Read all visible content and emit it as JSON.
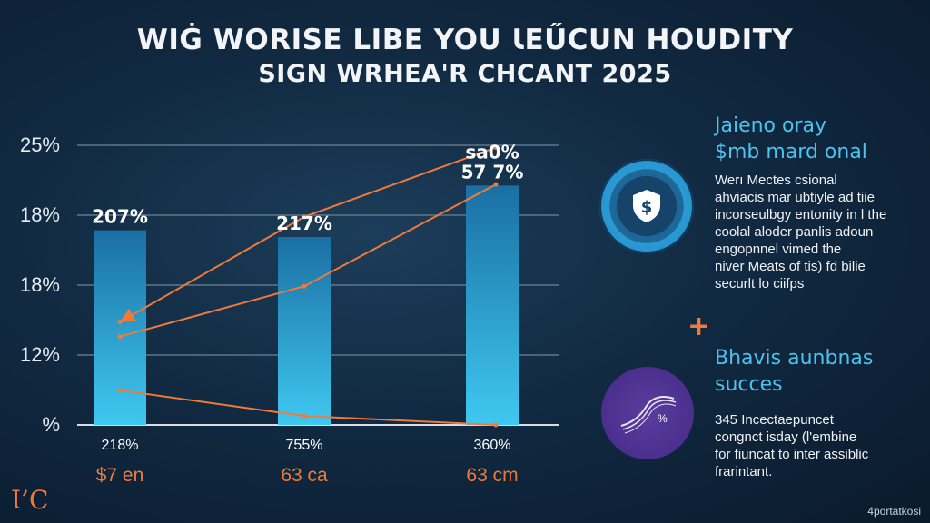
{
  "header": {
    "title_line1": "WIĠ WORISE LIBE YOU ƖEŰCUN HOUDITY",
    "title_line2": "SIGN WRHEA'R CHCANT 2025"
  },
  "chart_data": {
    "type": "bar",
    "categories": [
      "218%",
      "755%",
      "360%"
    ],
    "sub_labels": [
      "$7 en",
      "63 ca",
      "63 cm"
    ],
    "values": [
      17.4,
      16.8,
      21.4
    ],
    "bar_labels": [
      "207%",
      "217%",
      "57 7%"
    ],
    "top_label_extra": "sa0%",
    "y_tick_labels": [
      "%",
      "12%",
      "18%",
      "18%",
      "25%"
    ],
    "ylim": [
      0,
      25
    ],
    "grid": true,
    "lines": [
      {
        "name": "",
        "values": [
          9.2,
          18.6,
          24.8
        ],
        "arrow_start": true
      },
      {
        "name": "",
        "values": [
          7.9,
          12.4,
          21.5
        ]
      },
      {
        "name": "",
        "values": [
          3.1,
          0.8,
          0
        ]
      }
    ],
    "colors": {
      "bar_top": "#1a6fa3",
      "bar_bottom": "#3fc8f0",
      "line": "#f07a3a"
    }
  },
  "panel1": {
    "heading_line1": "Jaieno oray",
    "heading_line2": "$mb mard onal",
    "body": [
      "Werı Mectes csional",
      "ahviacis mar ubtiyle ad tiie",
      "incorseulbgy entonity in l the",
      "coolal aloder panlis adoun",
      "engopnnel vimed the",
      "niver Meats of tis) fd bilie",
      "securlt lo ciifps"
    ],
    "icon": "shield-dollar-icon"
  },
  "panel2": {
    "heading_line1": "Bhavis aunbnas",
    "heading_line2": "succes",
    "body": [
      "345 Incectaepuncet",
      "congnct isday (l'embine",
      "for fiuncat to inter assiblic",
      "frarintant."
    ],
    "icon_text": "%"
  },
  "footer": {
    "logo_text": "Ɩ’C",
    "watermark": "4portatkosi"
  }
}
